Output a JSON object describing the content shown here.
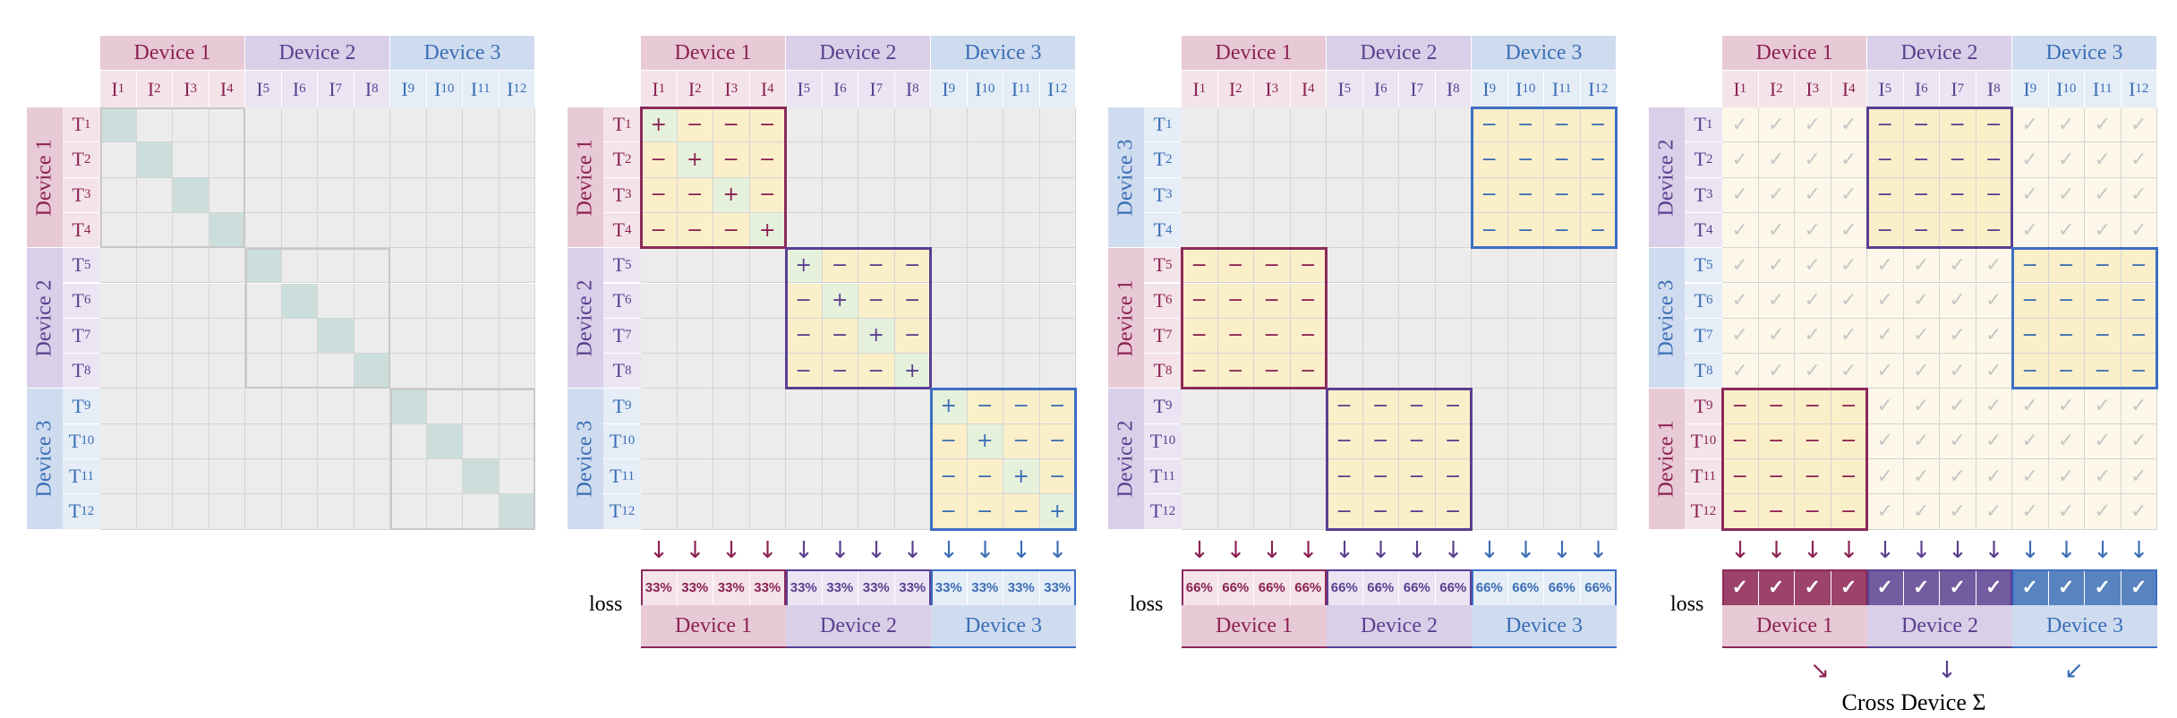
{
  "devices": [
    {
      "label": "Device 1",
      "color": "#8b2252",
      "header_bg": "#e8c9d6",
      "body_bg": "#f4e4ea",
      "block_border": "#8b2a5a"
    },
    {
      "label": "Device 2",
      "color": "#5a3f8f",
      "header_bg": "#d9cfe8",
      "body_bg": "#ebe5f3",
      "block_border": "#5b3e93"
    },
    {
      "label": "Device 3",
      "color": "#3b6eb5",
      "header_bg": "#cfdcef",
      "body_bg": "#e5edf7",
      "block_border": "#3c6ec4"
    }
  ],
  "columns": [
    "I",
    "I",
    "I",
    "I",
    "I",
    "I",
    "I",
    "I",
    "I",
    "I",
    "I",
    "I"
  ],
  "column_subs": [
    "1",
    "2",
    "3",
    "4",
    "5",
    "6",
    "7",
    "8",
    "9",
    "10",
    "11",
    "12"
  ],
  "rows": [
    "T",
    "T",
    "T",
    "T",
    "T",
    "T",
    "T",
    "T",
    "T",
    "T",
    "T",
    "T"
  ],
  "row_subs": [
    "1",
    "2",
    "3",
    "4",
    "5",
    "6",
    "7",
    "8",
    "9",
    "10",
    "11",
    "12"
  ],
  "symbols": {
    "plus": "+",
    "minus": "−",
    "check": "✓",
    "arrow_down": "↓",
    "arrow_se": "↘",
    "arrow_sw": "↙"
  },
  "panels": [
    {
      "row_devices": [
        0,
        1,
        2
      ],
      "diag_fill": "#ccdedc",
      "blocks": []
    },
    {
      "row_devices": [
        0,
        1,
        2
      ],
      "blocks": [
        {
          "r": 0,
          "c": 0
        },
        {
          "r": 1,
          "c": 1
        },
        {
          "r": 2,
          "c": 2
        }
      ],
      "loss": {
        "label": "loss",
        "percent": "33%"
      }
    },
    {
      "row_devices": [
        2,
        0,
        1
      ],
      "blocks": [
        {
          "r": 0,
          "c": 2
        },
        {
          "r": 1,
          "c": 0
        },
        {
          "r": 2,
          "c": 1
        }
      ],
      "loss": {
        "label": "loss",
        "percent": "66%"
      }
    },
    {
      "row_devices": [
        1,
        2,
        0
      ],
      "blocks": [
        {
          "r": 0,
          "c": 1
        },
        {
          "r": 1,
          "c": 2
        },
        {
          "r": 2,
          "c": 0
        }
      ],
      "loss": {
        "label": "loss",
        "check": "✓"
      },
      "cross_label": "Cross Device Σ"
    }
  ],
  "colors": {
    "grid_bg": "#ececec",
    "block_bg": "#fbefc9",
    "faded_bg": "#fcf7e8",
    "diag_check_bg": "#e6f1dc",
    "check_color": "#9ccc88",
    "faded_check_color": "#c7c7c7",
    "minus_color_default": "#555555"
  }
}
